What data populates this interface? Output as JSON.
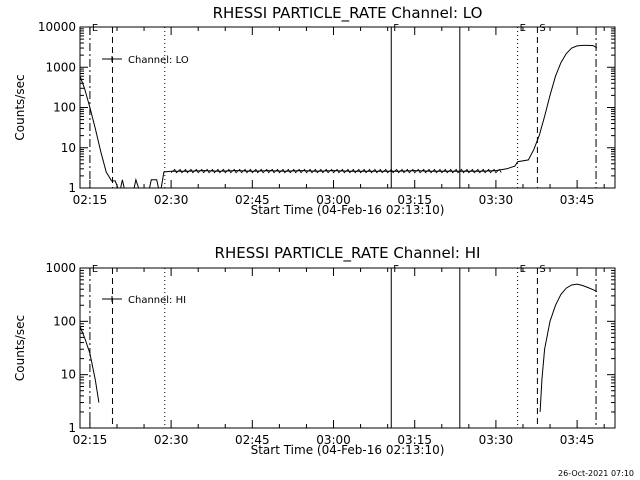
{
  "chart_data": [
    {
      "type": "line",
      "title": "RHESSI PARTICLE_RATE Channel: LO",
      "xlabel": "Start Time (04-Feb-16 02:13:10)",
      "ylabel": "Counts/sec",
      "yscale": "log",
      "xlim": [
        "02:13:10",
        "03:52:00"
      ],
      "ylim": [
        1,
        10000
      ],
      "x_ticks": [
        "02:15",
        "02:30",
        "02:45",
        "03:00",
        "03:15",
        "03:30",
        "03:45"
      ],
      "y_ticks": [
        "1",
        "10",
        "100",
        "1000",
        "10000"
      ],
      "grid": false,
      "legend": {
        "position": "top-left",
        "entries": [
          "Channel: LO"
        ]
      },
      "markers": [
        {
          "label": "E",
          "time": "02:15:00",
          "style": "dashdot"
        },
        {
          "label": "",
          "time": "02:19:10",
          "style": "dashed"
        },
        {
          "label": "",
          "time": "02:28:50",
          "style": "dotted"
        },
        {
          "label": "F",
          "time": "03:10:40",
          "style": "solid"
        },
        {
          "label": "",
          "time": "03:23:20",
          "style": "solid"
        },
        {
          "label": "E",
          "time": "03:34:00",
          "style": "dotted"
        },
        {
          "label": "S",
          "time": "03:37:40",
          "style": "dashed"
        },
        {
          "label": "",
          "time": "03:48:30",
          "style": "dashdot"
        }
      ],
      "series": [
        {
          "segments": [
            [
              [
                "02:13:10",
                600
              ],
              [
                "02:14:00",
                300
              ],
              [
                "02:15:00",
                100
              ],
              [
                "02:16:00",
                30
              ],
              [
                "02:17:00",
                8
              ],
              [
                "02:18:00",
                2.5
              ],
              [
                "02:19:00",
                1.5
              ],
              [
                "02:19:40",
                1.5
              ],
              [
                "02:20:10",
                1
              ]
            ],
            [
              [
                "02:20:40",
                1
              ],
              [
                "02:21:00",
                1.6
              ],
              [
                "02:21:20",
                1
              ]
            ],
            [
              [
                "02:23:10",
                1
              ],
              [
                "02:23:30",
                1.6
              ],
              [
                "02:24:00",
                1
              ]
            ],
            [
              [
                "02:26:00",
                1
              ],
              [
                "02:26:20",
                1.6
              ],
              [
                "02:27:20",
                1.6
              ],
              [
                "02:27:40",
                1
              ]
            ],
            [
              [
                "02:28:10",
                1
              ],
              [
                "02:28:40",
                2.5
              ],
              [
                "02:30:00",
                2.6
              ],
              [
                "02:33:00",
                2.6
              ],
              [
                "02:36:00",
                2.7
              ],
              [
                "02:39:00",
                2.6
              ],
              [
                "02:42:00",
                2.7
              ],
              [
                "02:45:00",
                2.6
              ],
              [
                "02:48:00",
                2.7
              ],
              [
                "02:51:00",
                2.6
              ],
              [
                "02:54:00",
                2.7
              ],
              [
                "02:57:00",
                2.6
              ],
              [
                "03:00:00",
                2.7
              ],
              [
                "03:03:00",
                2.6
              ],
              [
                "03:06:00",
                2.6
              ],
              [
                "03:09:00",
                2.6
              ],
              [
                "03:12:00",
                2.6
              ],
              [
                "03:15:00",
                2.7
              ],
              [
                "03:18:00",
                2.6
              ],
              [
                "03:21:00",
                2.6
              ],
              [
                "03:24:00",
                2.6
              ],
              [
                "03:27:00",
                2.6
              ],
              [
                "03:30:00",
                2.7
              ],
              [
                "03:32:00",
                3.0
              ],
              [
                "03:33:30",
                3.5
              ],
              [
                "03:34:00",
                4.5
              ],
              [
                "03:36:00",
                5.0
              ],
              [
                "03:37:00",
                9
              ],
              [
                "03:38:00",
                20
              ],
              [
                "03:39:00",
                60
              ],
              [
                "03:40:00",
                200
              ],
              [
                "03:41:00",
                600
              ],
              [
                "03:42:00",
                1300
              ],
              [
                "03:43:00",
                2200
              ],
              [
                "03:44:00",
                3000
              ],
              [
                "03:45:00",
                3400
              ],
              [
                "03:46:00",
                3500
              ],
              [
                "03:47:00",
                3500
              ],
              [
                "03:48:00",
                3450
              ],
              [
                "03:48:40",
                3000
              ]
            ]
          ]
        }
      ]
    },
    {
      "type": "line",
      "title": "RHESSI PARTICLE_RATE Channel: HI",
      "xlabel": "Start Time (04-Feb-16 02:13:10)",
      "ylabel": "Counts/sec",
      "yscale": "log",
      "xlim": [
        "02:13:10",
        "03:52:00"
      ],
      "ylim": [
        1,
        1000
      ],
      "x_ticks": [
        "02:15",
        "02:30",
        "02:45",
        "03:00",
        "03:15",
        "03:30",
        "03:45"
      ],
      "y_ticks": [
        "1",
        "10",
        "100",
        "1000"
      ],
      "grid": false,
      "legend": {
        "position": "top-left",
        "entries": [
          "Channel: HI"
        ]
      },
      "markers": [
        {
          "label": "E",
          "time": "02:15:00",
          "style": "dashdot"
        },
        {
          "label": "",
          "time": "02:19:10",
          "style": "dashed"
        },
        {
          "label": "",
          "time": "02:28:50",
          "style": "dotted"
        },
        {
          "label": "F",
          "time": "03:10:40",
          "style": "solid"
        },
        {
          "label": "",
          "time": "03:23:20",
          "style": "solid"
        },
        {
          "label": "E",
          "time": "03:34:00",
          "style": "dotted"
        },
        {
          "label": "S",
          "time": "03:37:40",
          "style": "dashed"
        },
        {
          "label": "",
          "time": "03:48:30",
          "style": "dashdot"
        }
      ],
      "series": [
        {
          "segments": [
            [
              [
                "02:13:10",
                80
              ],
              [
                "02:14:00",
                50
              ],
              [
                "02:15:00",
                25
              ],
              [
                "02:16:00",
                8
              ],
              [
                "02:16:40",
                3
              ]
            ],
            [
              [
                "03:38:10",
                2
              ],
              [
                "03:38:30",
                8
              ],
              [
                "03:39:00",
                30
              ],
              [
                "03:40:00",
                100
              ],
              [
                "03:41:00",
                200
              ],
              [
                "03:42:00",
                320
              ],
              [
                "03:43:00",
                420
              ],
              [
                "03:44:00",
                480
              ],
              [
                "03:45:00",
                500
              ],
              [
                "03:46:00",
                470
              ],
              [
                "03:47:00",
                430
              ],
              [
                "03:48:00",
                390
              ],
              [
                "03:48:40",
                360
              ]
            ]
          ]
        }
      ]
    }
  ],
  "footer": {
    "timestamp": "26-Oct-2021 07:10"
  }
}
